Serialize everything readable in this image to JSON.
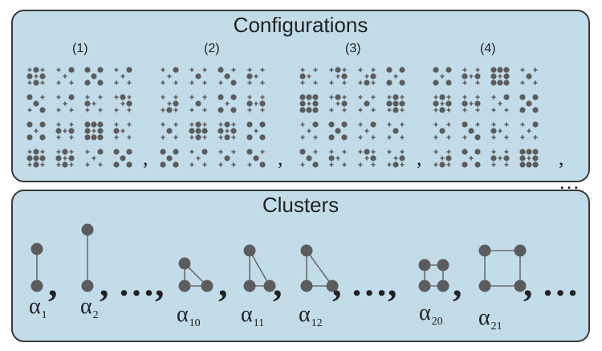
{
  "configurations": {
    "title": "Configurations",
    "groups": [
      {
        "label": "(1)",
        "separator": ",",
        "cells": [
          [
            0,
            1,
            2,
            3
          ],
          [
            4,
            0,
            5,
            6
          ],
          [
            7,
            8,
            9,
            4
          ],
          [
            10,
            11,
            12,
            13
          ]
        ]
      },
      {
        "label": "(2)",
        "separator": ",",
        "cells": [
          [
            0,
            1,
            2,
            3
          ],
          [
            4,
            0,
            5,
            6
          ],
          [
            7,
            8,
            9,
            4
          ],
          [
            10,
            11,
            12,
            13
          ]
        ]
      },
      {
        "label": "(3)",
        "separator": ",",
        "cells": [
          [
            0,
            1,
            2,
            3
          ],
          [
            4,
            0,
            5,
            6
          ],
          [
            7,
            8,
            9,
            4
          ],
          [
            10,
            11,
            12,
            13
          ]
        ]
      },
      {
        "label": "(4)",
        "separator": ", …",
        "cells": [
          [
            0,
            1,
            2,
            3
          ],
          [
            4,
            0,
            5,
            6
          ],
          [
            7,
            8,
            9,
            4
          ],
          [
            10,
            11,
            12,
            13
          ]
        ]
      }
    ]
  },
  "clusters": {
    "title": "Clusters",
    "items": [
      {
        "greek": "α",
        "index": "1",
        "shape": "pair-short",
        "after": ","
      },
      {
        "greek": "α",
        "index": "2",
        "shape": "pair-long",
        "after": ", …,"
      },
      {
        "greek": "α",
        "index": "10",
        "shape": "triangle-wide",
        "after": ","
      },
      {
        "greek": "α",
        "index": "11",
        "shape": "triangle-right",
        "after": ","
      },
      {
        "greek": "α",
        "index": "12",
        "shape": "triangle-tall",
        "after": ", …,"
      },
      {
        "greek": "α",
        "index": "20",
        "shape": "square-small",
        "after": ","
      },
      {
        "greek": "α",
        "index": "21",
        "shape": "square-large",
        "after": ", …"
      }
    ]
  },
  "colors": {
    "panel_fill": "#c3dce9",
    "node": "#5c5c5c",
    "edge": "#6e6e6e",
    "text": "#222222"
  }
}
